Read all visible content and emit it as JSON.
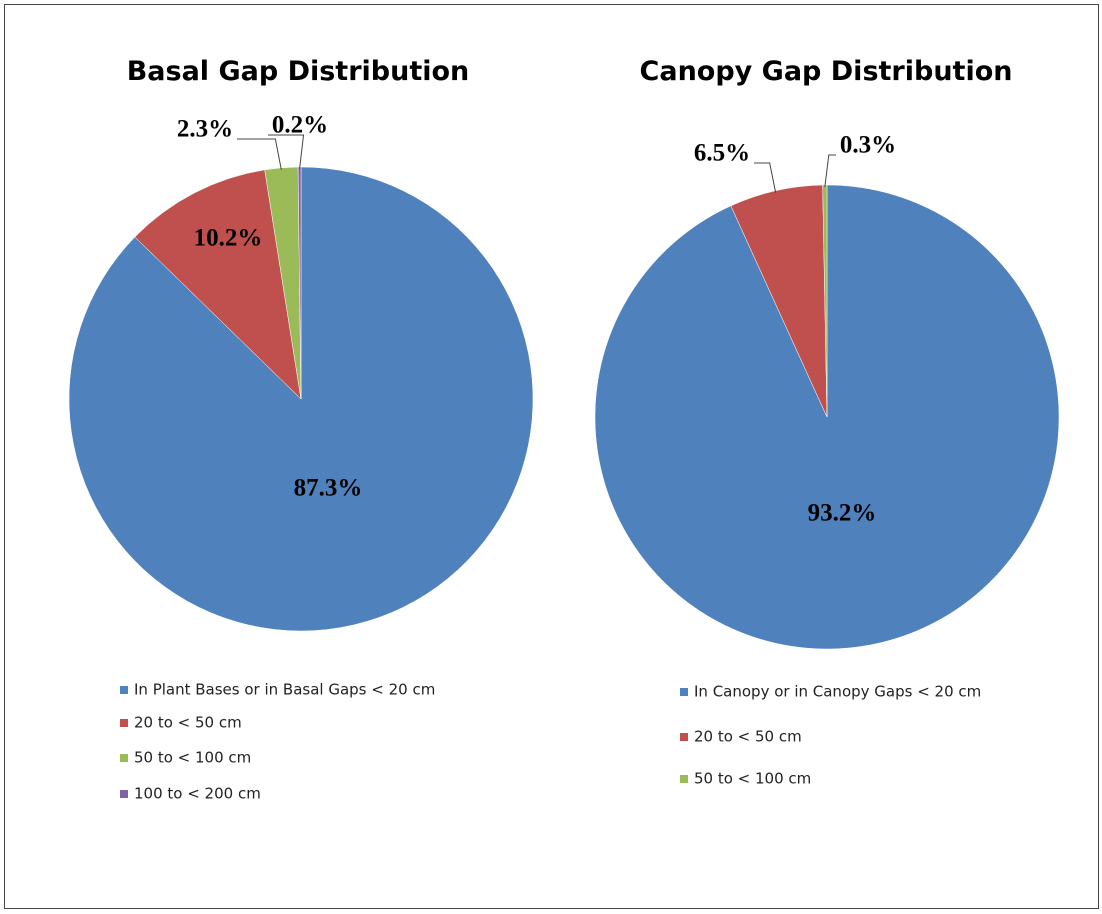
{
  "chart_data": [
    {
      "type": "pie",
      "title": "Basal Gap Distribution",
      "categories": [
        "In Plant Bases or in Basal Gaps < 20 cm",
        "20 to < 50 cm",
        "50 to < 100 cm",
        "100 to < 200 cm"
      ],
      "values": [
        87.3,
        10.2,
        2.3,
        0.2
      ],
      "value_labels": [
        "87.3%",
        "10.2%",
        "2.3%",
        "0.2%"
      ],
      "colors": [
        "#4f81bd",
        "#c0504d",
        "#9bbb59",
        "#8064a2"
      ]
    },
    {
      "type": "pie",
      "title": "Canopy Gap Distribution",
      "categories": [
        "In Canopy or in Canopy Gaps < 20 cm",
        "20 to < 50 cm",
        "50 to < 100 cm"
      ],
      "values": [
        93.2,
        6.5,
        0.3
      ],
      "value_labels": [
        "93.2%",
        "6.5%",
        "0.3%"
      ],
      "colors": [
        "#4f81bd",
        "#c0504d",
        "#9bbb59"
      ]
    }
  ]
}
